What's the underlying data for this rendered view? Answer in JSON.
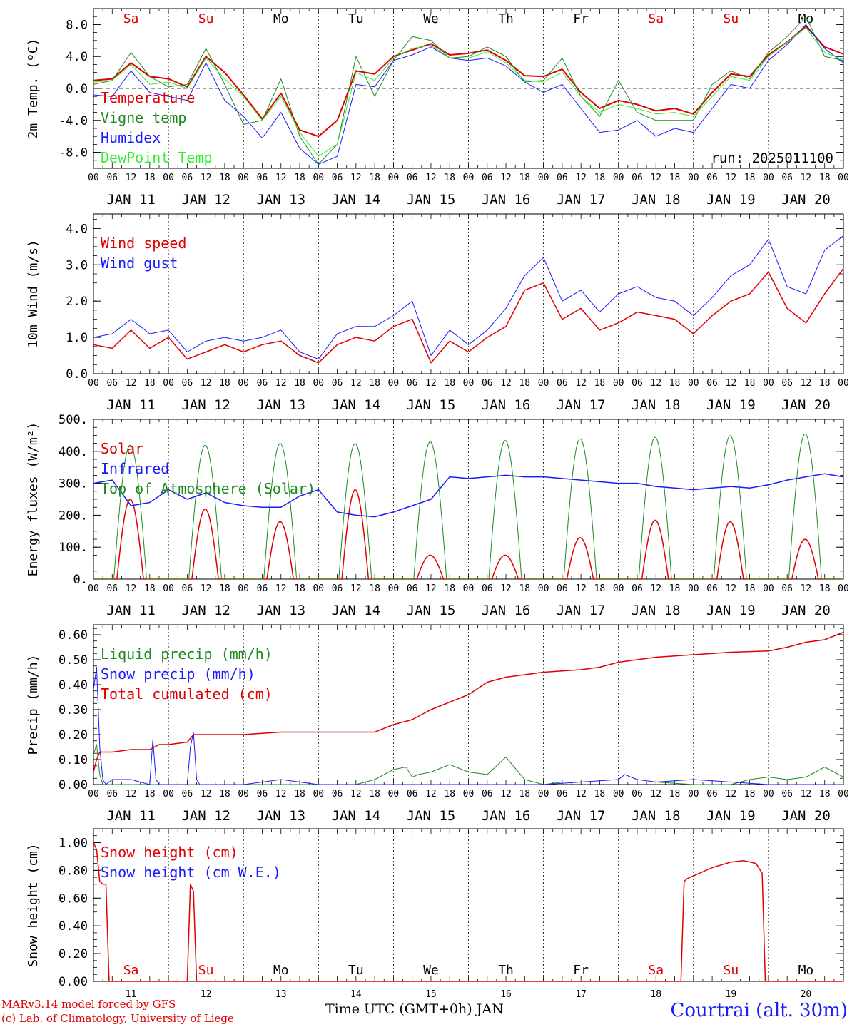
{
  "colors": {
    "red": "#e00000",
    "green": "#1d8a1d",
    "blue": "#1a1aff",
    "lime": "#33ee33",
    "grid": "#000000"
  },
  "days": {
    "weekday_labels": [
      "Sa",
      "Su",
      "Mo",
      "Tu",
      "We",
      "Th",
      "Fr",
      "Sa",
      "Su",
      "Mo"
    ],
    "weekend_flags": [
      true,
      true,
      false,
      false,
      false,
      false,
      false,
      true,
      true,
      false
    ],
    "date_labels": [
      "JAN 11",
      "JAN 12",
      "JAN 13",
      "JAN 14",
      "JAN 15",
      "JAN 16",
      "JAN 17",
      "JAN 18",
      "JAN 19",
      "JAN 20"
    ],
    "bottom_labels": [
      "11",
      "12",
      "13",
      "14",
      "15",
      "16",
      "17",
      "18",
      "19",
      "20"
    ],
    "hour_ticks": [
      "00",
      "06",
      "12",
      "18"
    ],
    "final_tick": "00"
  },
  "footer": {
    "model": "MARv3.14 model forced by GFS",
    "lab": "(c) Lab. of Climatology, University of Liege",
    "x_title": "Time UTC (GMT+0h) JAN",
    "station": "Courtrai (alt. 30m)"
  },
  "chart_data": [
    {
      "type": "line",
      "ylabel": "2m Temp. (ºC)",
      "ylim": [
        -10,
        10
      ],
      "yticks": [
        "-8.0",
        "-4.0",
        "0.0",
        "4.0",
        "8.0"
      ],
      "ytick_values": [
        -8,
        -4,
        0,
        4,
        8
      ],
      "zero_line": true,
      "annotation": "run: 2025011100",
      "x": [
        0,
        6,
        12,
        18,
        24,
        30,
        36,
        42,
        48,
        54,
        60,
        66,
        72,
        78,
        84,
        90,
        96,
        102,
        108,
        114,
        120,
        126,
        132,
        138,
        144,
        150,
        156,
        162,
        168,
        174,
        180,
        186,
        192,
        198,
        204,
        210,
        216,
        222,
        228,
        234,
        240
      ],
      "series": [
        {
          "name": "Temperature",
          "color": "red",
          "width": 2,
          "values": [
            1.0,
            1.2,
            3.2,
            1.5,
            1.2,
            0.2,
            4.0,
            2.0,
            -0.8,
            -3.8,
            -0.6,
            -5.2,
            -6.0,
            -4.0,
            2.2,
            1.8,
            4.0,
            4.8,
            5.6,
            4.2,
            4.4,
            4.8,
            3.5,
            1.6,
            1.5,
            2.4,
            -0.5,
            -2.5,
            -1.5,
            -2.0,
            -2.8,
            -2.5,
            -3.2,
            -0.5,
            1.8,
            1.5,
            4.2,
            5.8,
            7.8,
            5.2,
            4.3
          ]
        },
        {
          "name": "Vigne temp",
          "color": "green",
          "width": 1,
          "values": [
            0.5,
            1.0,
            4.5,
            1.5,
            0.2,
            0.5,
            5.0,
            0.5,
            -4.5,
            -4.0,
            1.2,
            -6.0,
            -9.5,
            -7.0,
            4.0,
            -1.0,
            3.5,
            6.5,
            6.0,
            3.8,
            4.0,
            5.2,
            4.0,
            0.8,
            1.0,
            3.8,
            -1.0,
            -3.5,
            1.0,
            -3.0,
            -4.0,
            -4.0,
            -4.0,
            0.5,
            2.2,
            1.2,
            4.5,
            6.5,
            9.0,
            4.0,
            3.5
          ]
        },
        {
          "name": "Humidex",
          "color": "blue",
          "width": 1,
          "values": [
            -0.8,
            -1.0,
            2.2,
            -0.5,
            -1.0,
            -1.5,
            3.2,
            -1.5,
            -3.5,
            -6.2,
            -3.0,
            -7.5,
            -9.5,
            -8.5,
            0.5,
            0.2,
            3.5,
            4.2,
            5.2,
            3.8,
            3.5,
            3.8,
            2.8,
            0.8,
            -0.5,
            0.5,
            -2.5,
            -5.5,
            -5.2,
            -4.0,
            -6.0,
            -5.0,
            -5.5,
            -2.5,
            0.5,
            0.0,
            3.5,
            5.5,
            8.0,
            5.0,
            3.2
          ]
        },
        {
          "name": "DewPoint Temp",
          "color": "lime",
          "width": 1,
          "values": [
            0.8,
            1.0,
            3.0,
            0.5,
            0.8,
            0.0,
            3.8,
            1.2,
            -1.0,
            -4.0,
            -1.0,
            -5.5,
            -8.5,
            -7.0,
            2.0,
            1.0,
            3.8,
            5.0,
            5.4,
            3.8,
            3.8,
            4.6,
            3.2,
            1.0,
            0.8,
            2.0,
            -1.0,
            -3.0,
            -2.0,
            -2.5,
            -3.2,
            -3.0,
            -3.5,
            -1.0,
            1.5,
            1.0,
            4.0,
            5.8,
            7.6,
            4.5,
            3.6
          ]
        }
      ]
    },
    {
      "type": "line",
      "ylabel": "10m Wind (m/s)",
      "ylim": [
        0,
        4.4
      ],
      "yticks": [
        "0.0",
        "1.0",
        "2.0",
        "3.0",
        "4.0"
      ],
      "ytick_values": [
        0,
        1,
        2,
        3,
        4
      ],
      "x": [
        0,
        6,
        12,
        18,
        24,
        30,
        36,
        42,
        48,
        54,
        60,
        66,
        72,
        78,
        84,
        90,
        96,
        102,
        108,
        114,
        120,
        126,
        132,
        138,
        144,
        150,
        156,
        162,
        168,
        174,
        180,
        186,
        192,
        198,
        204,
        210,
        216,
        222,
        228,
        234,
        240
      ],
      "series": [
        {
          "name": "Wind speed",
          "color": "red",
          "width": 1.5,
          "values": [
            0.8,
            0.7,
            1.2,
            0.7,
            1.0,
            0.4,
            0.6,
            0.8,
            0.6,
            0.8,
            0.9,
            0.5,
            0.3,
            0.8,
            1.0,
            0.9,
            1.3,
            1.5,
            0.3,
            0.9,
            0.6,
            1.0,
            1.3,
            2.3,
            2.5,
            1.5,
            1.8,
            1.2,
            1.4,
            1.7,
            1.6,
            1.5,
            1.1,
            1.6,
            2.0,
            2.2,
            2.8,
            1.8,
            1.4,
            2.2,
            2.9
          ]
        },
        {
          "name": "Wind gust",
          "color": "blue",
          "width": 1,
          "values": [
            1.0,
            1.1,
            1.5,
            1.1,
            1.2,
            0.6,
            0.9,
            1.0,
            0.9,
            1.0,
            1.2,
            0.6,
            0.4,
            1.1,
            1.3,
            1.3,
            1.6,
            2.0,
            0.5,
            1.2,
            0.8,
            1.2,
            1.8,
            2.7,
            3.2,
            2.0,
            2.3,
            1.7,
            2.2,
            2.4,
            2.1,
            2.0,
            1.6,
            2.1,
            2.7,
            3.0,
            3.7,
            2.4,
            2.2,
            3.4,
            3.8
          ]
        }
      ]
    },
    {
      "type": "line",
      "ylabel": "Energy fluxes (W/m²)",
      "ylim": [
        0,
        500
      ],
      "yticks": [
        "0.",
        "100.",
        "200.",
        "300.",
        "400.",
        "500."
      ],
      "ytick_values": [
        0,
        100,
        200,
        300,
        400,
        500
      ],
      "x_step": 3,
      "peaks": {
        "solar": [
          250,
          220,
          180,
          280,
          75,
          75,
          130,
          185,
          180,
          125
        ],
        "toa": [
          420,
          420,
          425,
          425,
          430,
          435,
          440,
          445,
          450,
          455
        ]
      },
      "series": [
        {
          "name": "Solar",
          "color": "red",
          "width": 1.5
        },
        {
          "name": "Infrared",
          "color": "blue",
          "width": 1.5,
          "values": [
            300,
            310,
            230,
            240,
            280,
            250,
            270,
            240,
            230,
            225,
            225,
            260,
            280,
            210,
            200,
            195,
            210,
            230,
            250,
            320,
            315,
            320,
            325,
            320,
            320,
            315,
            310,
            305,
            300,
            300,
            290,
            285,
            280,
            285,
            290,
            285,
            295,
            310,
            320,
            330,
            320
          ]
        },
        {
          "name": "Top of Atmosphere (Solar)",
          "color": "green",
          "width": 1
        }
      ]
    },
    {
      "type": "line",
      "ylabel": "Precip (mm/h)",
      "ylim": [
        0,
        0.64
      ],
      "yticks": [
        "0.00",
        "0.10",
        "0.20",
        "0.30",
        "0.40",
        "0.50",
        "0.60"
      ],
      "ytick_values": [
        0,
        0.1,
        0.2,
        0.3,
        0.4,
        0.5,
        0.6
      ],
      "series": [
        {
          "name": "Liquid precip (mm/h)",
          "color": "green",
          "width": 1,
          "x": [
            0,
            1,
            2,
            3,
            6,
            12,
            18,
            24,
            30,
            36,
            42,
            48,
            60,
            72,
            84,
            90,
            96,
            100,
            102,
            104,
            108,
            114,
            120,
            126,
            132,
            138,
            144,
            150,
            156,
            162,
            168,
            180,
            192,
            204,
            210,
            216,
            222,
            228,
            234,
            240
          ],
          "values": [
            0.12,
            0.16,
            0.04,
            0.0,
            0.0,
            0.0,
            0.0,
            0.0,
            0.0,
            0.0,
            0.0,
            0.0,
            0.0,
            0.0,
            0.0,
            0.02,
            0.06,
            0.07,
            0.03,
            0.04,
            0.05,
            0.08,
            0.05,
            0.04,
            0.11,
            0.02,
            0.0,
            0.01,
            0.01,
            0.01,
            0.01,
            0.01,
            0.0,
            0.0,
            0.02,
            0.03,
            0.02,
            0.03,
            0.07,
            0.03
          ]
        },
        {
          "name": "Snow precip (mm/h)",
          "color": "blue",
          "width": 1,
          "x": [
            0,
            1,
            2,
            3,
            4,
            6,
            12,
            18,
            19,
            20,
            21,
            22,
            30,
            31,
            32,
            33,
            34,
            36,
            42,
            48,
            60,
            72,
            84,
            96,
            108,
            120,
            132,
            144,
            156,
            168,
            170,
            172,
            174,
            180,
            192,
            204,
            216,
            228,
            240
          ],
          "values": [
            0.38,
            0.47,
            0.15,
            0.02,
            0.0,
            0.02,
            0.02,
            0.0,
            0.18,
            0.02,
            0.0,
            0.0,
            0.0,
            0.15,
            0.21,
            0.02,
            0.0,
            0.0,
            0.0,
            0.0,
            0.02,
            0.0,
            0.0,
            0.0,
            0.0,
            0.0,
            0.0,
            0.0,
            0.01,
            0.02,
            0.04,
            0.03,
            0.02,
            0.01,
            0.02,
            0.01,
            0.0,
            0.0,
            0.0
          ]
        },
        {
          "name": "Total cumulated (cm)",
          "color": "red",
          "width": 1.5,
          "x": [
            0,
            1,
            2,
            6,
            12,
            18,
            21,
            24,
            30,
            32,
            36,
            48,
            60,
            72,
            84,
            90,
            96,
            102,
            108,
            114,
            120,
            126,
            132,
            138,
            144,
            150,
            156,
            162,
            168,
            174,
            180,
            192,
            204,
            216,
            222,
            228,
            234,
            240
          ],
          "values": [
            0.05,
            0.1,
            0.13,
            0.13,
            0.14,
            0.14,
            0.16,
            0.16,
            0.17,
            0.2,
            0.2,
            0.2,
            0.21,
            0.21,
            0.21,
            0.21,
            0.24,
            0.26,
            0.3,
            0.33,
            0.36,
            0.41,
            0.43,
            0.44,
            0.45,
            0.455,
            0.46,
            0.47,
            0.49,
            0.5,
            0.51,
            0.52,
            0.53,
            0.535,
            0.55,
            0.57,
            0.58,
            0.61
          ]
        }
      ]
    },
    {
      "type": "line",
      "ylabel": "Snow height (cm)",
      "ylim": [
        0,
        1.1
      ],
      "yticks": [
        "0.00",
        "0.20",
        "0.40",
        "0.60",
        "0.80",
        "1.00"
      ],
      "ytick_values": [
        0,
        0.2,
        0.4,
        0.6,
        0.8,
        1.0
      ],
      "series": [
        {
          "name": "Snow height (cm)",
          "color": "red",
          "width": 1.5,
          "x": [
            0,
            1,
            2,
            3,
            4,
            5,
            6,
            7,
            30,
            31,
            32,
            33,
            34,
            35,
            36,
            188,
            189,
            190,
            192,
            198,
            204,
            208,
            212,
            214,
            215,
            216,
            240
          ],
          "values": [
            1.0,
            0.95,
            0.72,
            0.7,
            0.7,
            0.0,
            0.0,
            0.0,
            0.0,
            0.7,
            0.65,
            0.0,
            0.0,
            0.0,
            0.0,
            0.0,
            0.72,
            0.74,
            0.76,
            0.82,
            0.86,
            0.87,
            0.85,
            0.78,
            0.0,
            0.0,
            0.0
          ]
        },
        {
          "name": "Snow height (cm W.E.)",
          "color": "blue",
          "width": 1
        }
      ]
    }
  ]
}
